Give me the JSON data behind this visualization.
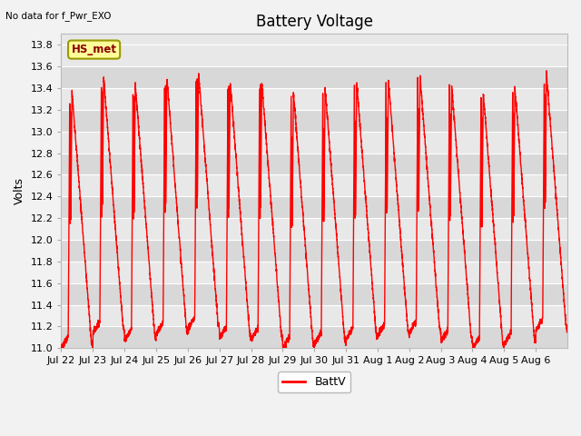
{
  "title": "Battery Voltage",
  "top_left_text": "No data for f_Pwr_EXO",
  "ylabel": "Volts",
  "ylim": [
    11.0,
    13.9
  ],
  "yticks": [
    11.0,
    11.2,
    11.4,
    11.6,
    11.8,
    12.0,
    12.2,
    12.4,
    12.6,
    12.8,
    13.0,
    13.2,
    13.4,
    13.6,
    13.8
  ],
  "line_color": "#FF0000",
  "line_width": 1.0,
  "legend_label": "BattV",
  "hs_met_label": "HS_met",
  "fig_bg_color": "#F2F2F2",
  "plot_bg_color": "#E8E8E8",
  "grid_color": "#FFFFFF",
  "band_color_dark": "#D8D8D8",
  "band_color_light": "#E8E8E8",
  "title_fontsize": 12,
  "axis_label_fontsize": 9,
  "tick_fontsize": 8,
  "x_tick_labels": [
    "Jul 22",
    "Jul 23",
    "Jul 24",
    "Jul 25",
    "Jul 26",
    "Jul 27",
    "Jul 28",
    "Jul 29",
    "Jul 30",
    "Jul 31",
    "Aug 1",
    "Aug 2",
    "Aug 3",
    "Aug 4",
    "Aug 5",
    "Aug 6"
  ],
  "x_tick_days": [
    1,
    2,
    3,
    4,
    5,
    6,
    7,
    8,
    9,
    10,
    11,
    12,
    13,
    14,
    15,
    16
  ]
}
